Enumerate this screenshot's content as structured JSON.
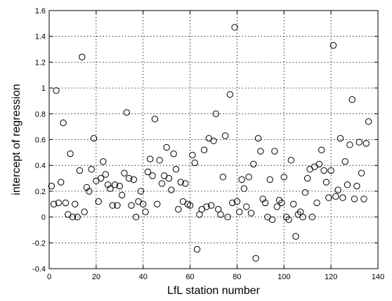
{
  "chart_data": {
    "type": "scatter",
    "title": "",
    "xlabel": "LfL station number",
    "ylabel": "intercept of regression",
    "xlim": [
      0,
      140
    ],
    "ylim": [
      -0.4,
      1.6
    ],
    "xticks": [
      0,
      20,
      40,
      60,
      80,
      100,
      120,
      140
    ],
    "yticks": [
      -0.4,
      -0.2,
      0,
      0.2,
      0.4,
      0.6,
      0.8,
      1,
      1.2,
      1.4,
      1.6
    ],
    "grid": true,
    "marker": "open-circle",
    "color": "#000000",
    "series": [
      {
        "x": [
          1,
          2,
          3,
          4,
          5,
          6,
          7,
          8,
          9,
          10,
          11,
          12,
          13,
          14,
          15,
          16,
          17,
          18,
          19,
          20,
          21,
          22,
          23,
          24,
          25,
          26,
          27,
          28,
          29,
          30,
          31,
          32,
          33,
          34,
          35,
          36,
          37,
          38,
          39,
          40,
          41,
          42,
          43,
          44,
          45,
          46,
          47,
          48,
          49,
          50,
          51,
          52,
          53,
          54,
          55,
          56,
          57,
          58,
          59,
          60,
          61,
          62,
          63,
          64,
          65,
          66,
          67,
          68,
          69,
          70,
          71,
          72,
          73,
          74,
          75,
          76,
          77,
          78,
          79,
          80,
          81,
          82,
          83,
          84,
          85,
          86,
          87,
          88,
          89,
          90,
          91,
          92,
          93,
          94,
          95,
          96,
          97,
          98,
          99,
          100,
          101,
          102,
          103,
          104,
          105,
          106,
          107,
          108,
          109,
          110,
          111,
          112,
          113,
          114,
          115,
          116,
          117,
          118,
          119,
          120,
          121,
          122,
          123,
          124,
          125,
          126,
          127,
          128,
          129,
          130,
          131,
          132,
          133,
          134,
          135,
          136
        ],
        "y": [
          0.24,
          0.1,
          0.98,
          0.11,
          0.27,
          0.73,
          0.11,
          0.02,
          0.49,
          0.0,
          0.1,
          0.0,
          0.36,
          1.24,
          0.04,
          0.23,
          0.2,
          0.37,
          0.61,
          0.28,
          0.12,
          0.3,
          0.43,
          0.33,
          0.25,
          0.22,
          0.09,
          0.25,
          0.09,
          0.24,
          0.17,
          0.34,
          0.81,
          0.3,
          0.09,
          0.29,
          0.0,
          0.12,
          0.2,
          0.1,
          0.04,
          0.35,
          0.45,
          0.32,
          0.76,
          0.1,
          0.44,
          0.26,
          0.32,
          0.54,
          0.3,
          0.21,
          0.49,
          0.37,
          0.06,
          0.27,
          0.12,
          0.26,
          0.1,
          0.09,
          0.48,
          0.42,
          -0.25,
          0.02,
          0.06,
          0.52,
          0.08,
          0.61,
          0.09,
          0.59,
          0.8,
          0.06,
          0.02,
          0.31,
          0.63,
          0.0,
          0.95,
          0.11,
          1.47,
          0.12,
          0.04,
          0.29,
          0.22,
          0.08,
          0.31,
          0.03,
          0.41,
          -0.32,
          0.61,
          0.51,
          0.14,
          0.11,
          0.0,
          0.29,
          -0.02,
          0.51,
          0.08,
          0.13,
          0.11,
          0.31,
          0.0,
          -0.02,
          0.44,
          0.1,
          -0.15,
          0.02,
          0.04,
          0.0,
          0.19,
          0.3,
          0.37,
          0.0,
          0.39,
          0.11,
          0.41,
          0.52,
          0.36,
          0.27,
          0.15,
          0.36,
          1.33,
          0.16,
          0.21,
          0.61,
          0.15,
          0.43,
          0.25,
          0.56,
          0.91,
          0.14,
          0.24,
          0.58,
          0.34,
          0.14,
          0.57,
          0.74
        ]
      }
    ]
  }
}
